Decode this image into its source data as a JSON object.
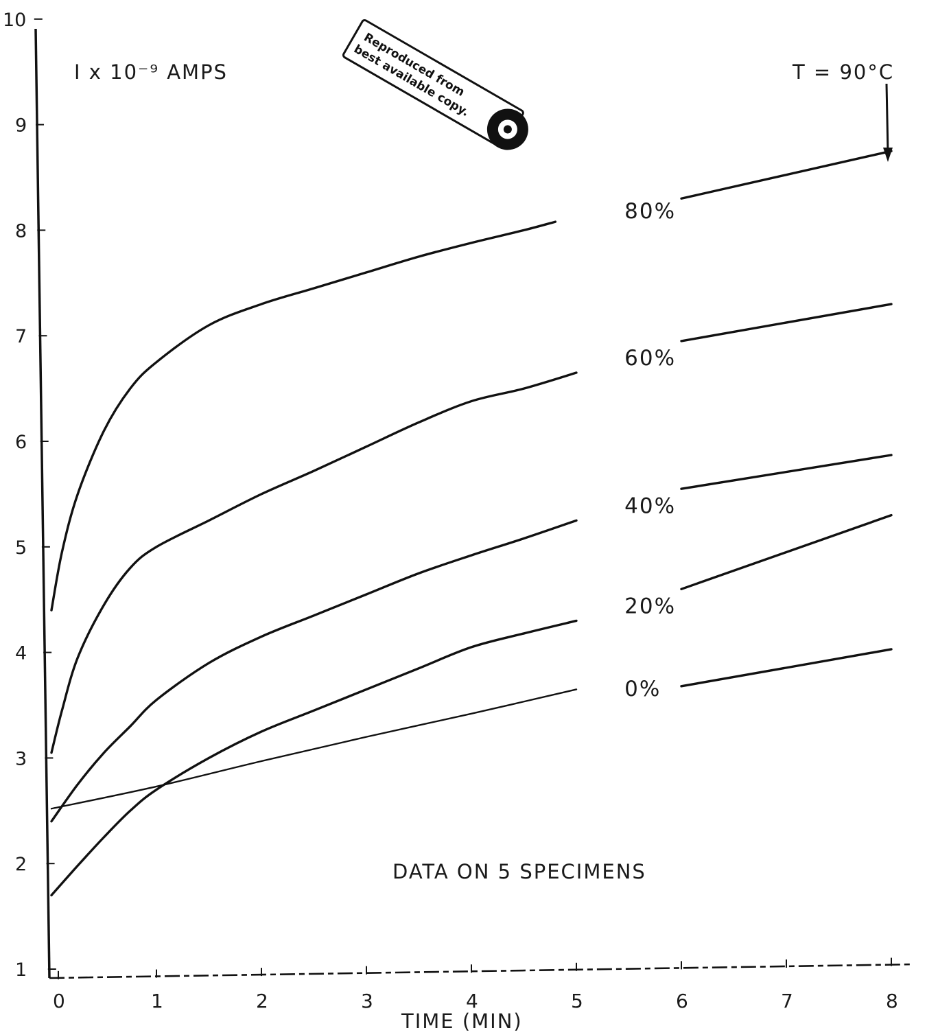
{
  "chart_data": {
    "type": "line",
    "ylabel": "I x 10⁻⁹ AMPS",
    "xlabel": "TIME (MIN)",
    "ylim": [
      1,
      10
    ],
    "xlim": [
      0,
      8
    ],
    "y_ticks": [
      "1",
      "2",
      "3",
      "4",
      "5",
      "6",
      "7",
      "8",
      "9",
      "10"
    ],
    "x_ticks": [
      "0",
      "1",
      "2",
      "3",
      "4",
      "5",
      "6",
      "7",
      "8"
    ],
    "annotations": {
      "temperature": "T = 90°C",
      "specimens": "DATA ON 5 SPECIMENS",
      "stamp_line1": "Reproduced from",
      "stamp_line2": "best available copy."
    },
    "grid": false,
    "series": [
      {
        "name": "80%",
        "x": [
          0,
          0.1,
          0.25,
          0.5,
          0.75,
          1,
          1.5,
          2,
          2.5,
          3,
          3.5,
          4,
          4.5,
          4.8
        ],
        "y": [
          4.4,
          4.95,
          5.5,
          6.1,
          6.5,
          6.75,
          7.1,
          7.3,
          7.45,
          7.6,
          7.75,
          7.88,
          8.0,
          8.08
        ],
        "x_late": [
          6,
          8
        ],
        "y_late": [
          8.3,
          8.75
        ]
      },
      {
        "name": "60%",
        "x": [
          0,
          0.1,
          0.25,
          0.5,
          0.75,
          1,
          1.5,
          2,
          2.5,
          3,
          3.5,
          4,
          4.5,
          5
        ],
        "y": [
          3.05,
          3.45,
          3.95,
          4.45,
          4.8,
          5.0,
          5.25,
          5.5,
          5.72,
          5.95,
          6.18,
          6.38,
          6.5,
          6.65
        ],
        "x_late": [
          6,
          8
        ],
        "y_late": [
          6.95,
          7.3
        ]
      },
      {
        "name": "40%",
        "x": [
          0,
          0.25,
          0.5,
          0.75,
          1,
          1.5,
          2,
          2.5,
          3,
          3.5,
          4,
          4.5,
          5
        ],
        "y": [
          2.4,
          2.75,
          3.05,
          3.3,
          3.55,
          3.9,
          4.15,
          4.35,
          4.55,
          4.75,
          4.92,
          5.08,
          5.25
        ],
        "x_late": [
          6,
          8
        ],
        "y_late": [
          5.55,
          5.87
        ]
      },
      {
        "name": "20%",
        "x": [
          0,
          0.25,
          0.5,
          0.75,
          1,
          1.5,
          2,
          2.5,
          3,
          3.5,
          4,
          4.5,
          5
        ],
        "y": [
          1.7,
          1.98,
          2.25,
          2.5,
          2.7,
          3.0,
          3.25,
          3.45,
          3.65,
          3.85,
          4.05,
          4.18,
          4.3
        ],
        "x_late": [
          6,
          8
        ],
        "y_late": [
          4.6,
          5.3
        ]
      },
      {
        "name": "0%",
        "x": [
          0,
          1,
          2,
          3,
          4,
          5
        ],
        "y": [
          2.52,
          2.73,
          2.97,
          3.2,
          3.42,
          3.65
        ],
        "x_late": [
          6,
          8
        ],
        "y_late": [
          3.68,
          4.03
        ]
      }
    ]
  }
}
